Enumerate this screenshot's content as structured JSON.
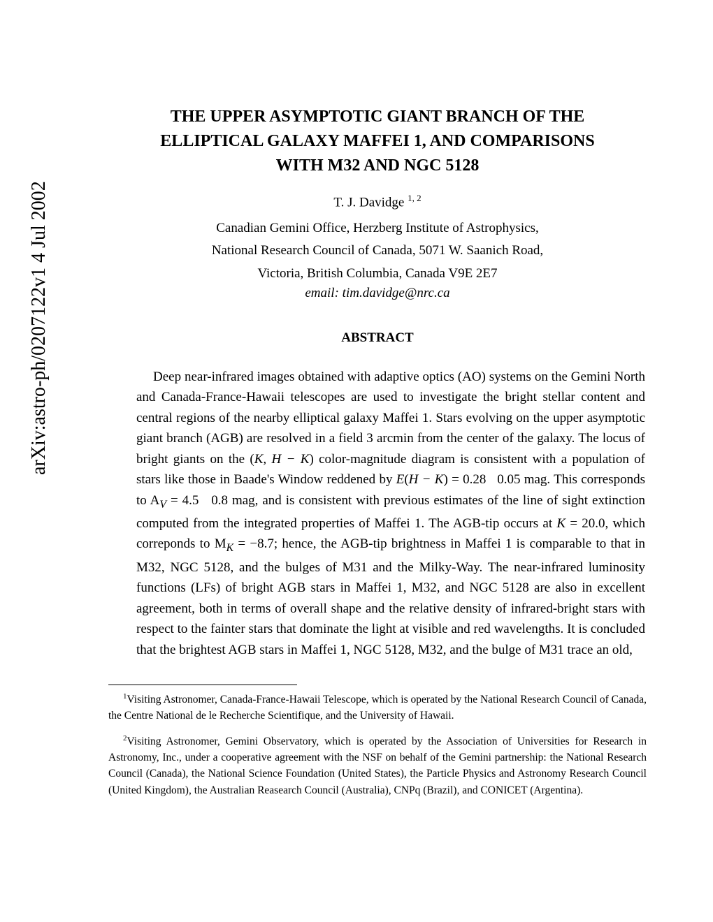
{
  "arxiv": {
    "identifier": "arXiv:astro-ph/0207122v1  4 Jul 2002"
  },
  "title": {
    "line1": "THE UPPER ASYMPTOTIC GIANT BRANCH OF THE",
    "line2": "ELLIPTICAL GALAXY MAFFEI 1, AND COMPARISONS",
    "line3": "WITH M32 AND NGC 5128"
  },
  "author": {
    "name": "T. J. Davidge",
    "marks": "1, 2"
  },
  "affiliation": {
    "line1": "Canadian Gemini Office, Herzberg Institute of Astrophysics,",
    "line2": "National Research Council of Canada, 5071 W. Saanich Road,",
    "line3": "Victoria, British Columbia, Canada V9E 2E7"
  },
  "email": "email: tim.davidge@nrc.ca",
  "abstract": {
    "heading": "ABSTRACT",
    "body_html": "Deep near-infrared images obtained with adaptive optics (AO) systems on the Gemini North and Canada-France-Hawaii telescopes are used to investigate the bright stellar content and central regions of the nearby elliptical galaxy Maffei 1. Stars evolving on the upper asymptotic giant branch (AGB) are resolved in a field 3 arcmin from the center of the galaxy. The locus of bright giants on the (<i>K, H − K</i>) color-magnitude diagram is consistent with a population of stars like those in Baade's Window reddened by <i>E</i>(<i>H − K</i>) = 0.28 &nbsp; 0.05 mag. This corresponds to A<sub><i>V</i></sub> = 4.5 &nbsp; 0.8 mag, and is consistent with previous estimates of the line of sight extinction computed from the integrated properties of Maffei 1. The AGB-tip occurs at <i>K</i> = 20.0, which correponds to M<sub><i>K</i></sub> = −8.7; hence, the AGB-tip brightness in Maffei 1 is comparable to that in M32, NGC 5128, and the bulges of M31 and the Milky-Way. The near-infrared luminosity functions (LFs) of bright AGB stars in Maffei 1, M32, and NGC 5128 are also in excellent agreement, both in terms of overall shape and the relative density of infrared-bright stars with respect to the fainter stars that dominate the light at visible and red wavelengths. It is concluded that the brightest AGB stars in Maffei 1, NGC 5128, M32, and the bulge of M31 trace an old,"
  },
  "footnotes": {
    "f1": {
      "mark": "1",
      "text": "Visiting Astronomer, Canada-France-Hawaii Telescope, which is operated by the National Research Council of Canada, the Centre National de le Recherche Scientifique, and the University of Hawaii."
    },
    "f2": {
      "mark": "2",
      "text": "Visiting Astronomer, Gemini Observatory, which is operated by the Association of Universities for Research in Astronomy, Inc., under a cooperative agreement with the NSF on behalf of the Gemini partnership: the National Research Council (Canada), the National Science Foundation (United States), the Particle Physics and Astronomy Research Council (United Kingdom), the Australian Reasearch Council (Australia), CNPq (Brazil), and CONICET (Argentina)."
    }
  }
}
